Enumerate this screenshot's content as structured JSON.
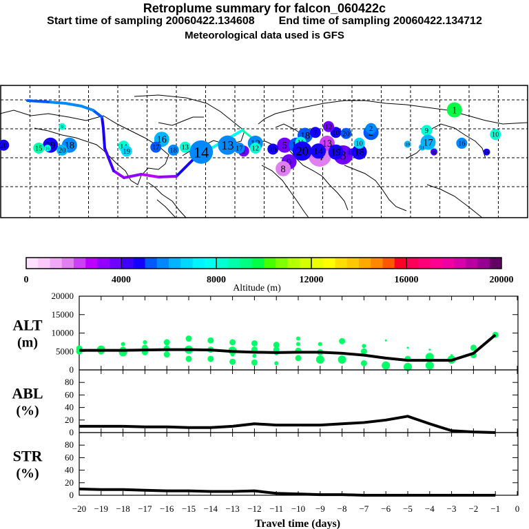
{
  "header": {
    "title": "Retroplume summary for falcon_060422c",
    "start_label": "Start time of sampling",
    "start_value": "20060422.134608",
    "end_label": "End time of sampling",
    "end_value": "20060422.134712",
    "met": "Meteorological data used is GFS"
  },
  "map": {
    "description": "World map (180W-180E) with 20-day retroplume cluster centroids, labeled by travel day and colored by altitude",
    "trajectory_color_note": "mean trajectory colored by altitude",
    "clusters": [
      {
        "label": "1",
        "lon": 130,
        "lat": 60,
        "alt": 9500,
        "size": 3
      },
      {
        "label": "2",
        "lon": 73,
        "lat": 37,
        "alt": 5000,
        "size": 3
      },
      {
        "label": "2",
        "lon": 73,
        "lat": 41,
        "alt": 5500,
        "size": 2
      },
      {
        "label": "3",
        "lon": 54,
        "lat": 14,
        "alt": 3500,
        "size": 4
      },
      {
        "label": "4",
        "lon": 38,
        "lat": 14,
        "alt": 1500,
        "size": 5
      },
      {
        "label": "5",
        "lon": 14,
        "lat": 24,
        "alt": 3500,
        "size": 3
      },
      {
        "label": "11",
        "lon": 22,
        "lat": 24,
        "alt": 5000,
        "size": 3
      },
      {
        "label": "13",
        "lon": 43,
        "lat": 26,
        "alt": 2000,
        "size": 3
      },
      {
        "label": "18",
        "lon": 28,
        "lat": 34,
        "alt": 5000,
        "size": 3
      },
      {
        "label": "7",
        "lon": 35,
        "lat": 37,
        "alt": 4500,
        "size": 2
      },
      {
        "label": "10",
        "lon": 49,
        "lat": 37,
        "alt": 4500,
        "size": 2
      },
      {
        "label": "20",
        "lon": 56,
        "lat": 36,
        "alt": 5000,
        "size": 2
      },
      {
        "label": "12",
        "lon": 44,
        "lat": 43,
        "alt": 3500,
        "size": 2
      },
      {
        "label": "9",
        "lon": 17,
        "lat": 7,
        "alt": 3500,
        "size": 3
      },
      {
        "label": "8",
        "lon": 13,
        "lat": 0,
        "alt": 1500,
        "size": 3
      },
      {
        "label": "12",
        "lon": -6,
        "lat": 26,
        "alt": 5500,
        "size": 3
      },
      {
        "label": "6",
        "lon": -14,
        "lat": 18,
        "alt": 3500,
        "size": 2
      },
      {
        "label": "13",
        "lon": -25,
        "lat": 24,
        "alt": 5500,
        "size": 4
      },
      {
        "label": "14",
        "lon": -43,
        "lat": 17,
        "alt": 5500,
        "size": 5
      },
      {
        "label": "16",
        "lon": -70,
        "lat": 30,
        "alt": 6000,
        "size": 3
      },
      {
        "label": "17",
        "lon": -74,
        "lat": 22,
        "alt": 5000,
        "size": 2
      },
      {
        "label": "18",
        "lon": -133,
        "lat": 24,
        "alt": 5500,
        "size": 3
      },
      {
        "label": "19",
        "lon": -146,
        "lat": 24,
        "alt": 4500,
        "size": 3
      },
      {
        "label": "20",
        "lon": -178,
        "lat": 24,
        "alt": 4500,
        "size": 2
      },
      {
        "label": "9",
        "lon": -138,
        "lat": 43,
        "alt": 8000,
        "size": 1
      },
      {
        "label": "19",
        "lon": 98,
        "lat": 25,
        "alt": 6000,
        "size": 1
      },
      {
        "label": "17",
        "lon": 116,
        "lat": 18,
        "alt": 8000,
        "size": 1
      },
      {
        "label": "16",
        "lon": -148,
        "lat": 21,
        "alt": 7500,
        "size": 1
      },
      {
        "label": "15",
        "lon": -154,
        "lat": 21,
        "alt": 8500,
        "size": 2
      },
      {
        "label": "20",
        "lon": -138,
        "lat": 19,
        "alt": 6000,
        "size": 2
      },
      {
        "label": "14",
        "lon": -96,
        "lat": 23,
        "alt": 8000,
        "size": 2
      },
      {
        "label": "19",
        "lon": -94,
        "lat": 18,
        "alt": 6500,
        "size": 2
      },
      {
        "label": "18",
        "lon": -62,
        "lat": 19,
        "alt": 5500,
        "size": 2
      },
      {
        "label": "13",
        "lon": -54,
        "lat": 22,
        "alt": 8000,
        "size": 2
      },
      {
        "label": "17",
        "lon": -17,
        "lat": 21,
        "alt": 5500,
        "size": 2
      },
      {
        "label": "12",
        "lon": -6,
        "lat": 21,
        "alt": 8000,
        "size": 2
      },
      {
        "label": "16",
        "lon": 6,
        "lat": 20,
        "alt": 4500,
        "size": 2
      },
      {
        "label": "11",
        "lon": 25,
        "lat": 27,
        "alt": 8000,
        "size": 2
      },
      {
        "label": "20",
        "lon": 26,
        "lat": 18,
        "alt": 4500,
        "size": 4
      },
      {
        "label": "14",
        "lon": 37,
        "lat": 18,
        "alt": 4500,
        "size": 3
      },
      {
        "label": "19",
        "lon": 49,
        "lat": 17,
        "alt": 4500,
        "size": 3
      },
      {
        "label": "13",
        "lon": 59,
        "lat": 17,
        "alt": 4000,
        "size": 1
      },
      {
        "label": "18",
        "lon": 65,
        "lat": 17,
        "alt": 4500,
        "size": 3
      },
      {
        "label": "10",
        "lon": 65,
        "lat": 26,
        "alt": 6500,
        "size": 2
      },
      {
        "label": "9",
        "lon": 111,
        "lat": 39,
        "alt": 8000,
        "size": 2
      },
      {
        "label": "17",
        "lon": 112,
        "lat": 27,
        "alt": 6000,
        "size": 3
      },
      {
        "label": "11",
        "lon": 108,
        "lat": 22,
        "alt": 6000,
        "size": 1
      },
      {
        "label": "15",
        "lon": 116,
        "lat": 17,
        "alt": 4000,
        "size": 1
      },
      {
        "label": "16",
        "lon": 135,
        "lat": 26,
        "alt": 5500,
        "size": 2
      },
      {
        "label": "10",
        "lon": 158,
        "lat": 35,
        "alt": 8000,
        "size": 2
      },
      {
        "label": "14",
        "lon": 152,
        "lat": 17,
        "alt": 4500,
        "size": 1
      }
    ]
  },
  "colorbar": {
    "ticks": [
      "0",
      "4000",
      "8000",
      "12000",
      "16000",
      "20000"
    ],
    "label": "Altitude (m)",
    "colors": [
      "#ffe0ff",
      "#fac8fa",
      "#f0aaf5",
      "#e080f0",
      "#cc40f5",
      "#bb00ff",
      "#9400ff",
      "#7000ff",
      "#4000ff",
      "#1400ff",
      "#0058ff",
      "#0088ff",
      "#00b4ff",
      "#00d8ff",
      "#00f4ff",
      "#00fff0",
      "#00ffd2",
      "#00ffa8",
      "#00ff80",
      "#00ff46",
      "#46ff00",
      "#80ff00",
      "#b4ff00",
      "#d4ff00",
      "#ecff00",
      "#ffff00",
      "#ffdf00",
      "#ffc800",
      "#ffaa00",
      "#ff8800",
      "#ff5800",
      "#ff0028",
      "#ff0058",
      "#ff0078",
      "#ff0090",
      "#f000a0",
      "#d800a8",
      "#b800a0",
      "#960090",
      "#640064"
    ]
  },
  "chart_data": [
    {
      "type": "line",
      "name": "ALT",
      "ylabel_line1": "ALT",
      "ylabel_line2": "(m)",
      "ylim": [
        0,
        20000
      ],
      "yticks": [
        "0",
        "5000",
        "10000",
        "15000",
        "20000"
      ],
      "xlim": [
        -20,
        0
      ],
      "x": [
        -20,
        -19,
        -18,
        -17,
        -16,
        -15,
        -14,
        -13,
        -12,
        -11,
        -10,
        -9,
        -8,
        -7,
        -6,
        -5,
        -4,
        -3,
        -2,
        -1
      ],
      "values": [
        5300,
        5300,
        5300,
        5400,
        5500,
        5500,
        5400,
        5000,
        4800,
        4700,
        4800,
        4800,
        4500,
        4000,
        3200,
        2600,
        2600,
        2600,
        4500,
        9500
      ],
      "scatter_color": "#00ff66",
      "scatter": [
        {
          "x": -20,
          "y": 5800,
          "s": 2
        },
        {
          "x": -20,
          "y": 5000,
          "s": 2
        },
        {
          "x": -19,
          "y": 5500,
          "s": 3
        },
        {
          "x": -19,
          "y": 5000,
          "s": 2
        },
        {
          "x": -18,
          "y": 7000,
          "s": 1
        },
        {
          "x": -18,
          "y": 5500,
          "s": 2
        },
        {
          "x": -18,
          "y": 4800,
          "s": 3
        },
        {
          "x": -17,
          "y": 7500,
          "s": 1
        },
        {
          "x": -17,
          "y": 6000,
          "s": 2
        },
        {
          "x": -17,
          "y": 4800,
          "s": 2
        },
        {
          "x": -16,
          "y": 7500,
          "s": 2
        },
        {
          "x": -16,
          "y": 5800,
          "s": 2
        },
        {
          "x": -16,
          "y": 4200,
          "s": 2
        },
        {
          "x": -15,
          "y": 8500,
          "s": 2
        },
        {
          "x": -15,
          "y": 5500,
          "s": 3
        },
        {
          "x": -15,
          "y": 3000,
          "s": 2
        },
        {
          "x": -14,
          "y": 8000,
          "s": 2
        },
        {
          "x": -14,
          "y": 5500,
          "s": 2
        },
        {
          "x": -14,
          "y": 3000,
          "s": 2
        },
        {
          "x": -13,
          "y": 7500,
          "s": 2
        },
        {
          "x": -13,
          "y": 5200,
          "s": 3
        },
        {
          "x": -13,
          "y": 4200,
          "s": 1
        },
        {
          "x": -13,
          "y": 2200,
          "s": 2
        },
        {
          "x": -12,
          "y": 7200,
          "s": 2
        },
        {
          "x": -12,
          "y": 5500,
          "s": 2
        },
        {
          "x": -12,
          "y": 3800,
          "s": 1
        },
        {
          "x": -12,
          "y": 2000,
          "s": 2
        },
        {
          "x": -11,
          "y": 6800,
          "s": 2
        },
        {
          "x": -11,
          "y": 5500,
          "s": 2
        },
        {
          "x": -11,
          "y": 4500,
          "s": 1
        },
        {
          "x": -11,
          "y": 1800,
          "s": 1
        },
        {
          "x": -10,
          "y": 8500,
          "s": 1
        },
        {
          "x": -10,
          "y": 7000,
          "s": 1
        },
        {
          "x": -10,
          "y": 5200,
          "s": 2
        },
        {
          "x": -10,
          "y": 3200,
          "s": 2
        },
        {
          "x": -9,
          "y": 7000,
          "s": 1
        },
        {
          "x": -9,
          "y": 4800,
          "s": 2
        },
        {
          "x": -9,
          "y": 2800,
          "s": 3
        },
        {
          "x": -8,
          "y": 7800,
          "s": 2
        },
        {
          "x": -8,
          "y": 2800,
          "s": 3
        },
        {
          "x": -7,
          "y": 6500,
          "s": 1
        },
        {
          "x": -7,
          "y": 5000,
          "s": 2
        },
        {
          "x": -7,
          "y": 1800,
          "s": 2
        },
        {
          "x": -6,
          "y": 8000,
          "s": 0
        },
        {
          "x": -6,
          "y": 1200,
          "s": 3
        },
        {
          "x": -5,
          "y": 6000,
          "s": 0
        },
        {
          "x": -5,
          "y": 3000,
          "s": 2
        },
        {
          "x": -5,
          "y": 800,
          "s": 3
        },
        {
          "x": -4,
          "y": 5500,
          "s": 0
        },
        {
          "x": -4,
          "y": 3500,
          "s": 3
        },
        {
          "x": -4,
          "y": 1200,
          "s": 3
        },
        {
          "x": -3,
          "y": 4000,
          "s": 0
        },
        {
          "x": -3,
          "y": 2800,
          "s": 3
        },
        {
          "x": -2,
          "y": 6000,
          "s": 2
        },
        {
          "x": -2,
          "y": 4000,
          "s": 2
        },
        {
          "x": -1,
          "y": 9500,
          "s": 2
        }
      ]
    },
    {
      "type": "line",
      "name": "ABL",
      "ylabel_line1": "ABL",
      "ylabel_line2": "(%)",
      "ylim": [
        0,
        100
      ],
      "yticks": [
        "0",
        "20",
        "40",
        "60",
        "80"
      ],
      "xlim": [
        -20,
        0
      ],
      "x": [
        -20,
        -19,
        -18,
        -17,
        -16,
        -15,
        -14,
        -13,
        -12,
        -11,
        -10,
        -9,
        -8,
        -7,
        -6,
        -5,
        -4,
        -3,
        -2,
        -1
      ],
      "values": [
        10,
        10,
        10,
        9,
        9,
        8,
        8,
        10,
        14,
        12,
        12,
        12,
        14,
        16,
        20,
        26,
        14,
        3,
        1,
        0
      ]
    },
    {
      "type": "line",
      "name": "STR",
      "ylabel_line1": "STR",
      "ylabel_line2": "(%)",
      "ylim": [
        0,
        100
      ],
      "yticks": [
        "0",
        "20",
        "40",
        "60",
        "80"
      ],
      "xlim": [
        -20,
        0
      ],
      "x": [
        -20,
        -19,
        -18,
        -17,
        -16,
        -15,
        -14,
        -13,
        -12,
        -11,
        -10,
        -9,
        -8,
        -7,
        -6,
        -5,
        -4,
        -3,
        -2,
        -1
      ],
      "values": [
        10,
        9,
        9,
        8,
        7,
        7,
        6,
        6,
        7,
        3,
        2,
        1,
        1,
        0,
        0,
        0,
        0,
        0,
        0,
        0
      ],
      "xlabel": "Travel time (days)",
      "xticks": [
        "−20",
        "−19",
        "−18",
        "−17",
        "−16",
        "−15",
        "−14",
        "−13",
        "−12",
        "−11",
        "−10",
        "−9",
        "−8",
        "−7",
        "−6",
        "−5",
        "−4",
        "−3",
        "−2",
        "−1",
        "0"
      ]
    }
  ]
}
